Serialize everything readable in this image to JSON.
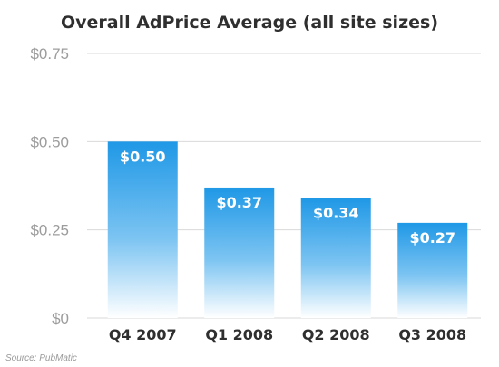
{
  "chart_data": {
    "type": "bar",
    "title": "Overall AdPrice Average (all site sizes)",
    "categories": [
      "Q4 2007",
      "Q1 2008",
      "Q2 2008",
      "Q3 2008"
    ],
    "values": [
      0.5,
      0.37,
      0.34,
      0.27
    ],
    "data_labels": [
      "$0.50",
      "$0.37",
      "$0.34",
      "$0.27"
    ],
    "xlabel": "",
    "ylabel": "",
    "ylim": [
      0,
      0.75
    ],
    "yticks": [
      0,
      0.25,
      0.5,
      0.75
    ],
    "ytick_labels": [
      "$0",
      "$0.25",
      "$0.50",
      "$0.75"
    ],
    "grid": true,
    "legend": "none",
    "source": "Source: PubMatic"
  },
  "colors": {
    "bar_top": "#1f98e6",
    "bar_bottom": "#ffffff",
    "grid": "#d9d9d9",
    "tick_label": "#9c9c9c",
    "category_label": "#2f2f2f",
    "data_label": "#ffffff"
  }
}
